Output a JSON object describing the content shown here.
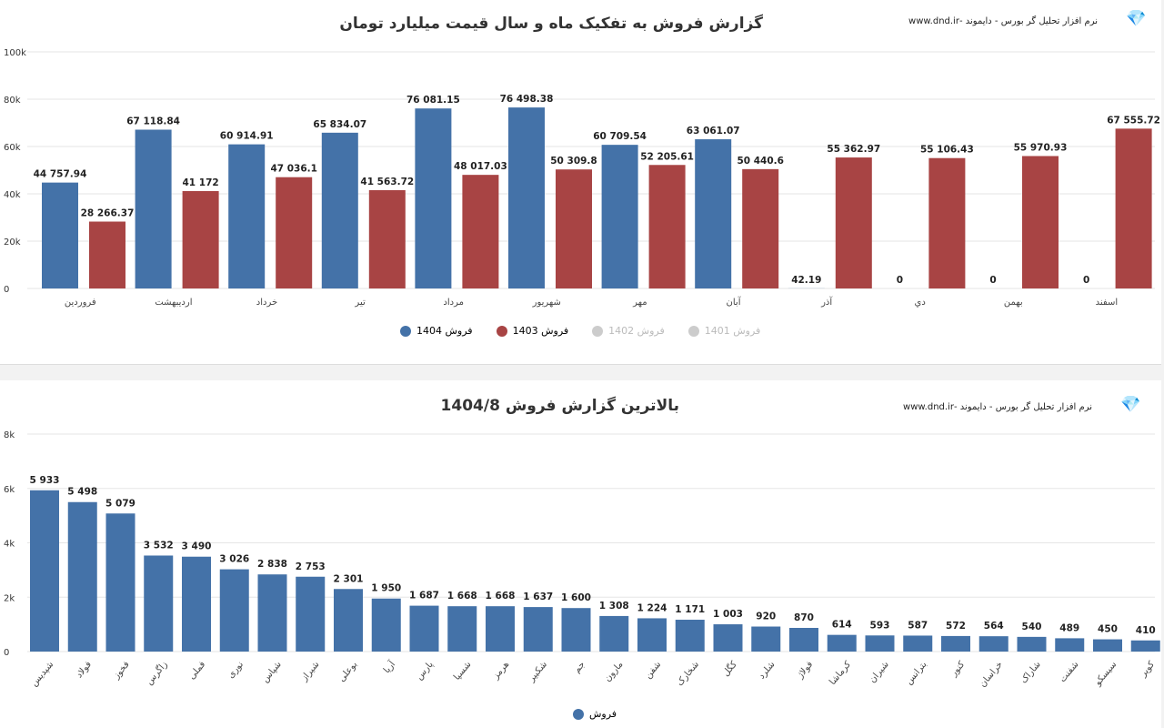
{
  "brand": "نرم افزار تحلیل گر بورس - دایموند -www.dnd.ir",
  "logo_icon": "diamond-icon",
  "colors": {
    "s1404": "#4472a8",
    "s1403": "#a84444",
    "inactive": "#cccccc"
  },
  "chart_data": [
    {
      "type": "bar",
      "title": "گزارش فروش به تفکیک ماه و سال قیمت میلیارد تومان",
      "categories": [
        "فروردین",
        "اردیبهشت",
        "خرداد",
        "تیر",
        "مرداد",
        "شهریور",
        "مهر",
        "آبان",
        "آذر",
        "دي",
        "بهمن",
        "اسفند"
      ],
      "series": [
        {
          "name": "فروش 1404",
          "values": [
            44757.94,
            67118.84,
            60914.91,
            65834.07,
            76081.15,
            76498.38,
            60709.54,
            63061.07,
            42.19,
            0,
            0,
            0
          ],
          "labels": [
            "44 757.94",
            "67 118.84",
            "60 914.91",
            "65 834.07",
            "76 081.15",
            "76 498.38",
            "60 709.54",
            "63 061.07",
            "42.19",
            "0",
            "0",
            "0"
          ],
          "visible": true
        },
        {
          "name": "فروش 1403",
          "values": [
            28266.37,
            41172,
            47036.1,
            41563.72,
            48017.03,
            50309.8,
            52205.61,
            50440.6,
            55362.97,
            55106.43,
            55970.93,
            67555.72
          ],
          "labels": [
            "28 266.37",
            "41 172",
            "47 036.1",
            "41 563.72",
            "48 017.03",
            "50 309.8",
            "52 205.61",
            "50 440.6",
            "55 362.97",
            "55 106.43",
            "55 970.93",
            "67 555.72"
          ],
          "visible": true
        },
        {
          "name": "فروش 1402",
          "visible": false
        },
        {
          "name": "فروش 1401",
          "visible": false
        }
      ],
      "yticks": [
        "0",
        "20k",
        "40k",
        "60k",
        "80k",
        "100k"
      ],
      "ylim": [
        0,
        100000
      ],
      "grid": true,
      "legend": "bottom"
    },
    {
      "type": "bar",
      "title": "بالاترین گزارش فروش 1404/8",
      "categories": [
        "شپدیس",
        "فولاد",
        "فخوز",
        "زاگرس",
        "فملی",
        "نوری",
        "شپاس",
        "شیراز",
        "بوعلی",
        "آریا",
        "پارس",
        "شسپا",
        "هرمز",
        "شکبیر",
        "جم",
        "مارون",
        "شفن",
        "شخارک",
        "کگل",
        "شلرد",
        "فولاژ",
        "کرماشا",
        "شیران",
        "بترانس",
        "کنور",
        "خراسان",
        "شاراک",
        "شفنت",
        "سیسکو",
        "کویر"
      ],
      "series": [
        {
          "name": "فروش",
          "values": [
            5933,
            5498,
            5079,
            3532,
            3490,
            3026,
            2838,
            2753,
            2301,
            1950,
            1687,
            1668,
            1668,
            1637,
            1600,
            1308,
            1224,
            1171,
            1003,
            920,
            870,
            614,
            593,
            587,
            572,
            564,
            540,
            489,
            450,
            410
          ],
          "labels": [
            "5 933",
            "5 498",
            "5 079",
            "3 532",
            "3 490",
            "3 026",
            "2 838",
            "2 753",
            "2 301",
            "1 950",
            "1 687",
            "1 668",
            "1 668",
            "1 637",
            "1 600",
            "1 308",
            "1 224",
            "1 171",
            "1 003",
            "920",
            "870",
            "614",
            "593",
            "587",
            "572",
            "564",
            "540",
            "489",
            "450",
            "410"
          ]
        }
      ],
      "yticks": [
        "0",
        "2k",
        "4k",
        "6k",
        "8k"
      ],
      "ylim": [
        0,
        8000
      ],
      "grid": true,
      "legend": "bottom"
    }
  ]
}
